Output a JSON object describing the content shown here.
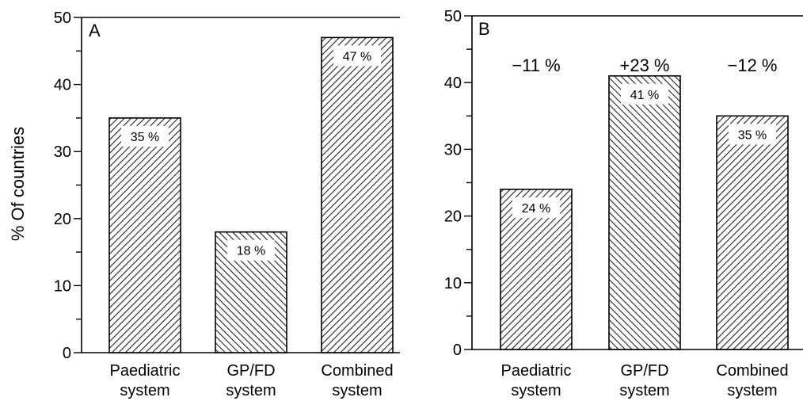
{
  "figure": {
    "ylabel": "% Of countries"
  },
  "chart_data": [
    {
      "type": "bar",
      "panel": "A",
      "categories": [
        "Paediatric\nsystem",
        "GP/FD\nsystem",
        "Combined\nsystem"
      ],
      "values": [
        35,
        18,
        47
      ],
      "data_labels": [
        "35 %",
        "18 %",
        "47 %"
      ],
      "ylabel": "% Of countries",
      "ylim": [
        0,
        50
      ],
      "yticks": [
        0,
        10,
        20,
        30,
        40,
        50
      ],
      "grid": false,
      "bar_fill": "diagonal-hatch"
    },
    {
      "type": "bar",
      "panel": "B",
      "categories": [
        "Paediatric\nsystem",
        "GP/FD\nsystem",
        "Combined\nsystem"
      ],
      "values": [
        24,
        41,
        35
      ],
      "data_labels": [
        "24 %",
        "41 %",
        "35 %"
      ],
      "changes": [
        "−11 %",
        "+23 %",
        "−12 %"
      ],
      "ylim": [
        0,
        50
      ],
      "yticks": [
        0,
        10,
        20,
        30,
        40,
        50
      ],
      "grid": false,
      "bar_fill": "diagonal-hatch"
    }
  ]
}
